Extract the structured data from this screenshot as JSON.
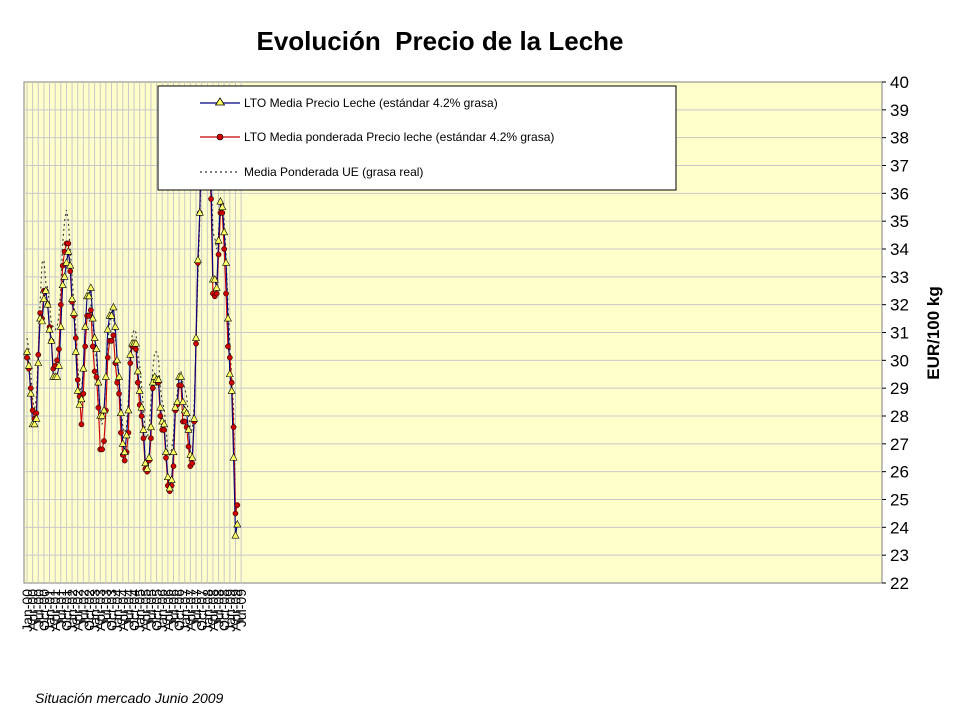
{
  "footnote": "Situación mercado Junio 2009",
  "chart_data": {
    "type": "line",
    "title": "Evolución  Precio de la Leche",
    "ylabel": "EUR/100 kg",
    "xlabel": "",
    "ylim": [
      22,
      40
    ],
    "y_ticks": [
      22,
      23,
      24,
      25,
      26,
      27,
      28,
      29,
      30,
      31,
      32,
      33,
      34,
      35,
      36,
      37,
      38,
      39,
      40
    ],
    "x_ticks": [
      "Jan-00",
      "Apr-00",
      "Jul-00",
      "Oct-00",
      "Jan-01",
      "Apr-01",
      "Jul-01",
      "Oct-01",
      "Jan-02",
      "Apr-02",
      "Jul-02",
      "Oct-02",
      "Jan-03",
      "Apr-03",
      "Jul-03",
      "Oct-03",
      "Jan-04",
      "Apr-04",
      "Jul-04",
      "Oct-04",
      "Jan-05",
      "Apr-05",
      "Jul-05",
      "Oct-05",
      "Jan-06",
      "Apr-06",
      "Jul-06",
      "Oct-06",
      "Jan-07",
      "Apr-07",
      "Jul-07",
      "Oct-07",
      "Jan-08",
      "Apr-08",
      "Jul-08",
      "Oct-08",
      "Jan-09",
      "Apr-09",
      "Jul-09"
    ],
    "x_start": "Jan-00",
    "x_step": "month",
    "grid": true,
    "legend_position": "top-left",
    "colors": {
      "plot_bg": "#ffffcc",
      "grid": "#c8c8c8",
      "series1": "#000080",
      "series2": "#cc0000",
      "series3": "#333333"
    },
    "series": [
      {
        "name": "LTO Media Precio Leche (estándar 4.2% grasa)",
        "style": "line-triangle",
        "values": [
          30.3,
          29.8,
          28.8,
          27.7,
          27.7,
          27.9,
          29.9,
          31.5,
          31.4,
          32.2,
          32.5,
          32.0,
          31.1,
          30.7,
          29.4,
          29.4,
          29.4,
          29.8,
          31.2,
          32.7,
          33.0,
          33.5,
          33.9,
          33.4,
          32.2,
          31.7,
          30.3,
          28.9,
          28.4,
          28.6,
          29.7,
          31.2,
          32.3,
          32.3,
          32.6,
          31.5,
          30.8,
          30.4,
          29.2,
          28.0,
          28.0,
          28.2,
          29.4,
          31.1,
          31.6,
          31.6,
          31.9,
          31.2,
          30.0,
          29.4,
          28.1,
          27.0,
          26.7,
          27.3,
          28.2,
          30.2,
          30.6,
          30.6,
          30.6,
          29.6,
          28.9,
          28.3,
          27.5,
          26.3,
          26.1,
          26.5,
          27.6,
          29.2,
          29.4,
          29.3,
          29.3,
          28.3,
          27.8,
          27.7,
          26.7,
          25.8,
          25.4,
          25.7,
          26.7,
          28.3,
          28.5,
          29.4,
          29.4,
          28.5,
          28.2,
          28.1,
          27.5,
          26.6,
          26.5,
          27.9,
          30.8,
          33.6,
          35.3,
          38.7,
          39.3,
          38.3,
          38.7,
          37.8,
          36.4,
          32.9,
          32.9,
          32.6,
          34.3,
          35.7,
          35.5,
          34.6,
          33.5,
          31.5,
          29.5,
          28.9,
          26.5,
          23.7,
          24.1
        ]
      },
      {
        "name": "LTO Media ponderada Precio leche (estándar 4.2% grasa)",
        "style": "line-dot",
        "values": [
          30.1,
          29.7,
          29.0,
          28.2,
          27.9,
          28.1,
          30.2,
          31.7,
          31.5,
          32.5,
          32.5,
          32.0,
          31.2,
          30.7,
          29.7,
          29.8,
          30.0,
          30.4,
          32.0,
          33.4,
          33.9,
          34.2,
          34.2,
          33.2,
          32.1,
          31.6,
          30.8,
          29.3,
          28.7,
          27.7,
          28.8,
          30.5,
          31.6,
          31.6,
          31.8,
          30.5,
          29.6,
          29.4,
          28.3,
          26.8,
          26.8,
          27.1,
          28.2,
          30.1,
          30.7,
          30.7,
          30.9,
          29.9,
          29.2,
          28.8,
          27.4,
          26.6,
          26.4,
          26.7,
          27.4,
          29.9,
          30.5,
          30.5,
          30.4,
          29.2,
          28.4,
          28.0,
          27.2,
          26.1,
          26.0,
          26.4,
          27.2,
          29.0,
          29.2,
          29.2,
          29.2,
          28.0,
          27.5,
          27.5,
          26.5,
          25.5,
          25.3,
          25.5,
          26.2,
          28.2,
          28.4,
          29.1,
          29.1,
          27.8,
          27.8,
          27.6,
          26.9,
          26.2,
          26.3,
          27.8,
          30.6,
          33.5,
          35.3,
          38.6,
          39.3,
          38.1,
          38.3,
          37.2,
          35.8,
          32.4,
          32.3,
          32.4,
          33.8,
          35.3,
          35.3,
          34.0,
          32.4,
          30.5,
          30.1,
          29.2,
          27.6,
          24.5,
          24.8
        ]
      },
      {
        "name": "Media Ponderada UE (grasa real)",
        "style": "dotted",
        "values": [
          30.8,
          30.4,
          29.6,
          28.6,
          28.2,
          28.7,
          30.3,
          32.1,
          33.5,
          33.6,
          32.8,
          32.6,
          32.0,
          31.3,
          31.2,
          31.1,
          31.2,
          31.6,
          32.6,
          34.2,
          35.0,
          35.4,
          35.0,
          34.0,
          33.0,
          32.0,
          31.2,
          29.8,
          29.0,
          28.9,
          29.7,
          31.0,
          31.6,
          31.8,
          32.0,
          31.3,
          30.6,
          30.0,
          29.0,
          28.0,
          27.7,
          28.1,
          29.4,
          30.6,
          31.3,
          31.6,
          31.6,
          30.9,
          30.1,
          29.5,
          28.5,
          27.6,
          27.4,
          27.6,
          28.6,
          30.0,
          30.9,
          31.1,
          31.0,
          30.2,
          29.8,
          29.1,
          28.3,
          27.4,
          27.2,
          27.5,
          28.5,
          29.7,
          30.3,
          30.3,
          30.1,
          29.0,
          28.5,
          28.3,
          27.6,
          26.7,
          26.6,
          26.8,
          27.3,
          28.4,
          28.8,
          29.4,
          29.6,
          29.2,
          29.0,
          28.7,
          28.0,
          27.5,
          27.5,
          28.4,
          30.5,
          33.0,
          35.0,
          37.6,
          39.3,
          38.7,
          39.0,
          38.3,
          36.6,
          34.6,
          34.4,
          34.0,
          34.6,
          35.5,
          35.7,
          35.0,
          33.8,
          32.0,
          30.6,
          29.4,
          28.2,
          24.5,
          24.5
        ]
      }
    ]
  }
}
